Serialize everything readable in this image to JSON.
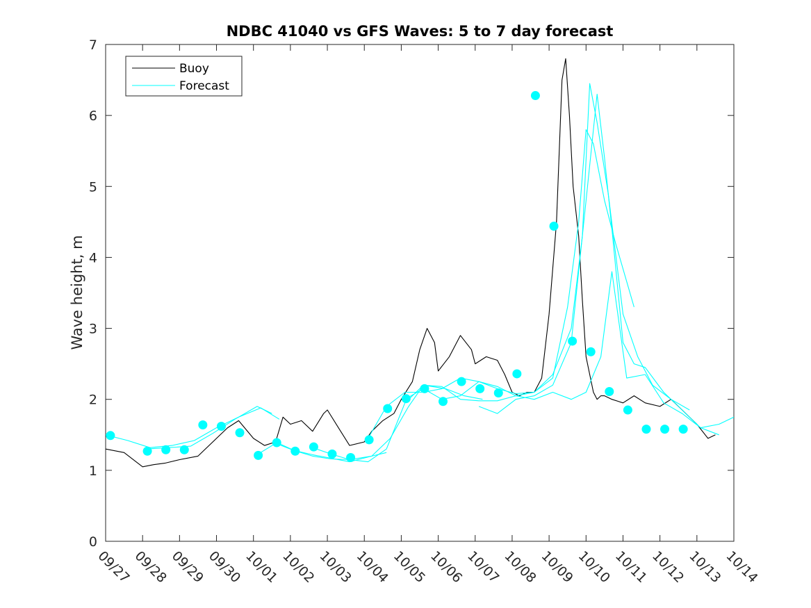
{
  "chart_data": {
    "type": "line",
    "title": "NDBC 41040 vs GFS Waves: 5 to 7 day forecast",
    "xlabel": "",
    "ylabel": "Wave height, m",
    "xlim": [
      0,
      17
    ],
    "ylim": [
      0,
      7
    ],
    "x_ticks": [
      0,
      1,
      2,
      3,
      4,
      5,
      6,
      7,
      8,
      9,
      10,
      11,
      12,
      13,
      14,
      15,
      16,
      17
    ],
    "x_tick_labels": [
      "09/27",
      "09/28",
      "09/29",
      "09/30",
      "10/01",
      "10/02",
      "10/03",
      "10/04",
      "10/05",
      "10/06",
      "10/07",
      "10/08",
      "10/09",
      "10/10",
      "10/11",
      "10/12",
      "10/13",
      "10/14"
    ],
    "y_ticks": [
      0,
      1,
      2,
      3,
      4,
      5,
      6,
      7
    ],
    "y_tick_labels": [
      "0",
      "1",
      "2",
      "3",
      "4",
      "5",
      "6",
      "7"
    ],
    "legend": {
      "position": "top-left",
      "entries": [
        "Buoy",
        "Forecast"
      ]
    },
    "colors": {
      "buoy": "#000000",
      "forecast": "#00ffff",
      "marker": "#00ffff",
      "axis": "#262626"
    },
    "series": [
      {
        "name": "Buoy",
        "x": [
          0.0,
          0.5,
          1.0,
          1.3,
          1.6,
          2.0,
          2.5,
          3.0,
          3.3,
          3.6,
          4.0,
          4.3,
          4.6,
          4.8,
          5.0,
          5.3,
          5.6,
          5.9,
          6.0,
          6.3,
          6.6,
          7.0,
          7.2,
          7.5,
          7.8,
          8.0,
          8.3,
          8.5,
          8.7,
          8.9,
          9.0,
          9.3,
          9.6,
          9.9,
          10.0,
          10.3,
          10.6,
          10.8,
          11.0,
          11.2,
          11.4,
          11.6,
          11.8,
          12.0,
          12.2,
          12.35,
          12.45,
          12.55,
          12.65,
          12.8,
          12.9,
          13.0,
          13.1,
          13.2,
          13.3,
          13.4,
          13.5,
          13.7,
          14.0,
          14.3,
          14.6,
          15.0,
          15.3,
          15.6,
          16.0,
          16.3,
          16.5
        ],
        "y": [
          1.3,
          1.25,
          1.05,
          1.08,
          1.1,
          1.15,
          1.2,
          1.45,
          1.6,
          1.7,
          1.45,
          1.35,
          1.4,
          1.75,
          1.65,
          1.7,
          1.55,
          1.8,
          1.85,
          1.6,
          1.35,
          1.4,
          1.55,
          1.7,
          1.8,
          2.0,
          2.25,
          2.7,
          3.0,
          2.8,
          2.4,
          2.6,
          2.9,
          2.7,
          2.5,
          2.6,
          2.55,
          2.35,
          2.1,
          2.05,
          2.1,
          2.1,
          2.3,
          3.2,
          4.5,
          6.5,
          6.8,
          6.0,
          5.0,
          4.3,
          3.4,
          2.6,
          2.35,
          2.1,
          2.0,
          2.05,
          2.05,
          2.0,
          1.95,
          2.05,
          1.95,
          1.9,
          2.0,
          1.85,
          1.65,
          1.45,
          1.5
        ]
      },
      {
        "name": "Forecast",
        "x": [
          0.0,
          0.6,
          1.2,
          1.8,
          2.4,
          3.0,
          3.6,
          4.2,
          4.7
        ],
        "y": [
          1.5,
          1.42,
          1.32,
          1.35,
          1.42,
          1.6,
          1.75,
          1.88,
          1.72
        ]
      },
      {
        "name": "Forecast",
        "x": [
          1.1,
          1.7,
          2.3,
          2.9,
          3.5,
          4.1,
          4.5
        ],
        "y": [
          1.3,
          1.32,
          1.34,
          1.52,
          1.72,
          1.9,
          1.8
        ]
      },
      {
        "name": "Forecast",
        "x": [
          4.1,
          4.6,
          5.1,
          5.6,
          6.1,
          6.6,
          7.2,
          7.6
        ],
        "y": [
          1.22,
          1.38,
          1.28,
          1.2,
          1.16,
          1.15,
          1.2,
          1.25
        ]
      },
      {
        "name": "Forecast",
        "x": [
          4.6,
          5.1,
          5.6,
          6.1,
          6.6,
          7.2,
          7.7,
          8.2,
          8.6,
          9.2,
          9.7,
          10.2
        ],
        "y": [
          1.4,
          1.28,
          1.22,
          1.17,
          1.12,
          1.2,
          1.45,
          1.9,
          2.2,
          2.15,
          2.05,
          2.0
        ]
      },
      {
        "name": "Forecast",
        "x": [
          5.6,
          6.1,
          6.6,
          7.1,
          7.6,
          8.1,
          8.6,
          9.1,
          9.6,
          10.1,
          10.6,
          11.1,
          11.4
        ],
        "y": [
          1.32,
          1.23,
          1.15,
          1.12,
          1.3,
          1.95,
          2.2,
          2.18,
          2.0,
          1.98,
          1.98,
          2.05,
          2.08
        ]
      },
      {
        "name": "Forecast",
        "x": [
          7.1,
          7.6,
          8.1,
          8.6,
          9.1,
          9.6,
          10.1,
          10.6,
          11.1,
          11.6,
          12.1,
          12.5,
          12.8,
          13.0,
          13.2,
          13.5,
          13.8,
          14.3
        ],
        "y": [
          1.45,
          1.9,
          2.1,
          2.1,
          2.15,
          2.3,
          2.25,
          2.15,
          2.08,
          2.1,
          2.3,
          3.3,
          4.5,
          5.8,
          5.6,
          4.8,
          4.2,
          3.3
        ]
      },
      {
        "name": "Forecast",
        "x": [
          8.1,
          8.6,
          9.1,
          9.6,
          10.1,
          10.6,
          11.1,
          11.6,
          12.1,
          12.6,
          12.9,
          13.1,
          13.3,
          13.6,
          14.0,
          14.4,
          14.8,
          15.3,
          15.8
        ],
        "y": [
          2.0,
          2.15,
          2.0,
          2.05,
          2.25,
          2.18,
          2.05,
          2.1,
          2.35,
          3.0,
          4.3,
          6.45,
          5.9,
          4.9,
          3.2,
          2.6,
          2.2,
          2.0,
          1.85
        ]
      },
      {
        "name": "Forecast",
        "x": [
          10.1,
          10.6,
          11.1,
          11.6,
          12.1,
          12.6,
          13.0,
          13.3,
          13.5,
          13.7,
          14.0,
          14.3,
          14.6,
          15.1,
          15.6,
          16.1,
          16.6
        ],
        "y": [
          1.9,
          1.8,
          2.0,
          2.05,
          2.2,
          2.8,
          4.8,
          6.3,
          5.4,
          4.4,
          2.8,
          2.5,
          2.45,
          2.1,
          1.85,
          1.6,
          1.5
        ]
      },
      {
        "name": "Forecast",
        "x": [
          11.1,
          11.6,
          12.1,
          12.6,
          13.0,
          13.4,
          13.7,
          14.1,
          14.6,
          15.1,
          15.6,
          16.1,
          16.6,
          17.0
        ],
        "y": [
          2.05,
          2.0,
          2.1,
          2.0,
          2.1,
          2.6,
          3.8,
          2.3,
          2.35,
          1.95,
          1.8,
          1.6,
          1.65,
          1.75
        ]
      }
    ],
    "markers": {
      "x": [
        0.13,
        1.13,
        1.63,
        2.13,
        2.63,
        3.13,
        3.63,
        4.13,
        4.63,
        5.13,
        5.63,
        6.13,
        6.63,
        7.13,
        7.63,
        8.13,
        8.63,
        9.13,
        9.63,
        10.13,
        10.63,
        11.13,
        11.63,
        12.13,
        12.63,
        13.13,
        13.63,
        14.13,
        14.63,
        15.13,
        15.63
      ],
      "y": [
        1.49,
        1.27,
        1.29,
        1.29,
        1.64,
        1.62,
        1.53,
        1.21,
        1.39,
        1.27,
        1.33,
        1.23,
        1.18,
        1.43,
        1.87,
        2.01,
        2.15,
        1.97,
        2.25,
        2.15,
        2.09,
        2.36,
        6.28,
        4.44,
        2.82,
        2.67,
        2.11,
        1.85,
        1.58,
        1.58,
        1.58
      ]
    }
  }
}
